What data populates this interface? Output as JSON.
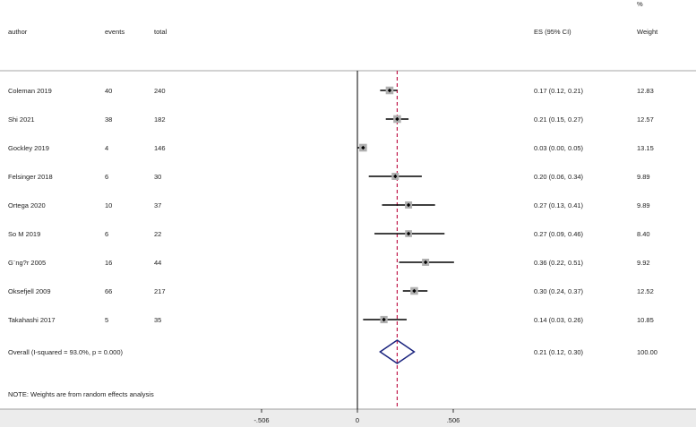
{
  "header": {
    "author": "author",
    "events": "events",
    "total": "total",
    "es": "ES (95% CI)",
    "weight_pct": "%",
    "weight": "Weight"
  },
  "chart_data": {
    "type": "forest",
    "studies": [
      {
        "author": "Coleman 2019",
        "events": "40",
        "total": "240",
        "es": 0.17,
        "lo": 0.12,
        "hi": 0.21,
        "es_text": "0.17 (0.12, 0.21)",
        "weight": "12.83"
      },
      {
        "author": "Shi 2021",
        "events": "38",
        "total": "182",
        "es": 0.21,
        "lo": 0.15,
        "hi": 0.27,
        "es_text": "0.21 (0.15, 0.27)",
        "weight": "12.57"
      },
      {
        "author": "Gockley 2019",
        "events": "4",
        "total": "146",
        "es": 0.03,
        "lo": 0.0,
        "hi": 0.05,
        "es_text": "0.03 (0.00, 0.05)",
        "weight": "13.15"
      },
      {
        "author": "Felsinger 2018",
        "events": "6",
        "total": "30",
        "es": 0.2,
        "lo": 0.06,
        "hi": 0.34,
        "es_text": "0.20 (0.06, 0.34)",
        "weight": "9.89"
      },
      {
        "author": "Ortega 2020",
        "events": "10",
        "total": "37",
        "es": 0.27,
        "lo": 0.13,
        "hi": 0.41,
        "es_text": "0.27 (0.13, 0.41)",
        "weight": "9.89"
      },
      {
        "author": "So M 2019",
        "events": "6",
        "total": "22",
        "es": 0.27,
        "lo": 0.09,
        "hi": 0.46,
        "es_text": "0.27 (0.09, 0.46)",
        "weight": "8.40"
      },
      {
        "author": "G¨ng?r 2005",
        "events": "16",
        "total": "44",
        "es": 0.36,
        "lo": 0.22,
        "hi": 0.51,
        "es_text": "0.36 (0.22, 0.51)",
        "weight": "9.92"
      },
      {
        "author": "Oksefjell 2009",
        "events": "66",
        "total": "217",
        "es": 0.3,
        "lo": 0.24,
        "hi": 0.37,
        "es_text": "0.30 (0.24, 0.37)",
        "weight": "12.52"
      },
      {
        "author": "Takahashi 2017",
        "events": "5",
        "total": "35",
        "es": 0.14,
        "lo": 0.03,
        "hi": 0.26,
        "es_text": "0.14 (0.03, 0.26)",
        "weight": "10.85"
      }
    ],
    "overall": {
      "label": "Overall  (I-squared = 93.0%, p = 0.000)",
      "es": 0.21,
      "lo": 0.12,
      "hi": 0.3,
      "es_text": "0.21 (0.12, 0.30)",
      "weight": "100.00"
    },
    "xaxis": {
      "ticks": [
        -0.506,
        0,
        0.506
      ],
      "tick_labels": [
        "-.506",
        "0",
        ".506"
      ],
      "range": [
        -0.506,
        0.506
      ]
    },
    "null_line": 0,
    "colors": {
      "overall_line": "#c0184a",
      "diamond": "#1a237e",
      "ci": "#000000",
      "square": "#b0b0b0"
    }
  },
  "note": "NOTE: Weights are from random effects analysis"
}
